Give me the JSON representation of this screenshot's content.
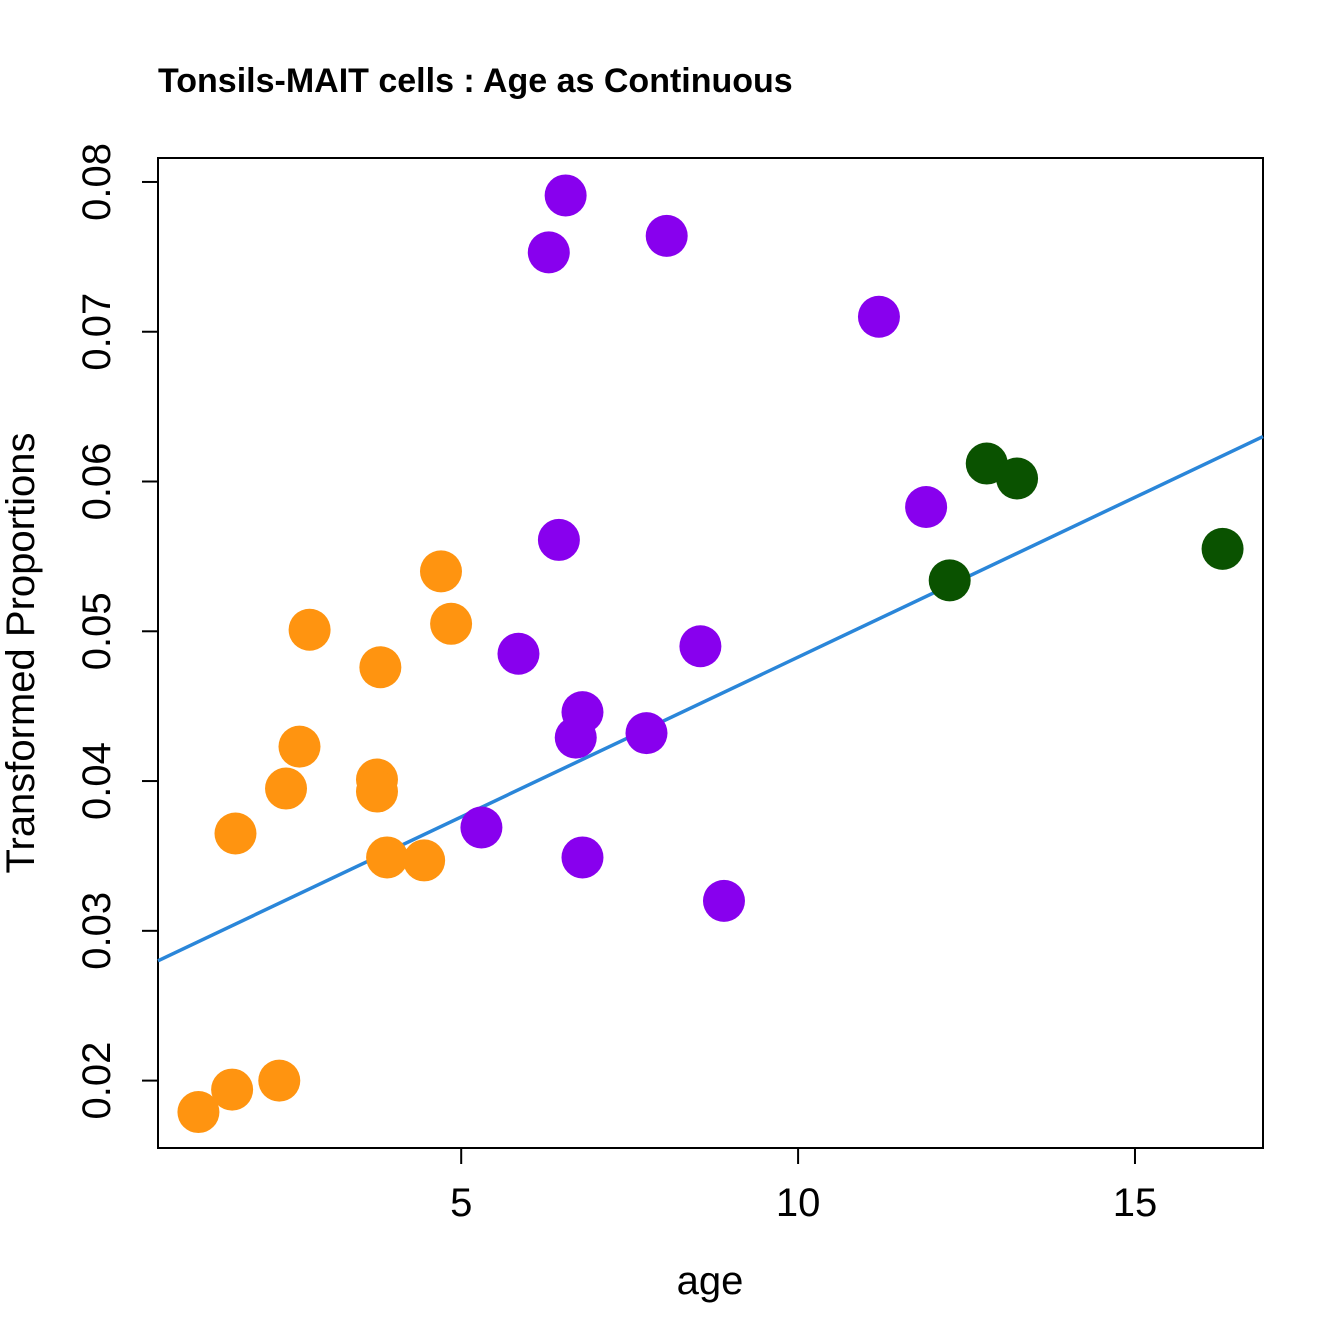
{
  "chart_data": {
    "type": "scatter",
    "title": "Tonsils-MAIT cells : Age as Continuous",
    "xlabel": "age",
    "ylabel": "Transformed Proportions",
    "xlim": [
      0.5,
      16.9
    ],
    "ylim": [
      0.0155,
      0.0816
    ],
    "xticks": [
      5,
      10,
      15
    ],
    "xtick_labels": [
      "5",
      "10",
      "15"
    ],
    "yticks": [
      0.02,
      0.03,
      0.04,
      0.05,
      0.06,
      0.07,
      0.08
    ],
    "ytick_labels": [
      "0.02",
      "0.03",
      "0.04",
      "0.05",
      "0.06",
      "0.07",
      "0.08"
    ],
    "grid": false,
    "series": [
      {
        "name": "orange",
        "color": "#FF9410",
        "points": [
          [
            1.1,
            0.0179
          ],
          [
            1.6,
            0.0194
          ],
          [
            2.3,
            0.02
          ],
          [
            1.65,
            0.0365
          ],
          [
            2.4,
            0.0395
          ],
          [
            2.6,
            0.0423
          ],
          [
            2.75,
            0.0501
          ],
          [
            3.8,
            0.0476
          ],
          [
            3.75,
            0.0401
          ],
          [
            3.75,
            0.0393
          ],
          [
            3.9,
            0.0349
          ],
          [
            4.45,
            0.0347
          ],
          [
            4.7,
            0.054
          ],
          [
            4.85,
            0.0505
          ]
        ]
      },
      {
        "name": "purple",
        "color": "#8800EE",
        "points": [
          [
            5.3,
            0.0369
          ],
          [
            5.85,
            0.0485
          ],
          [
            6.3,
            0.0753
          ],
          [
            6.55,
            0.0791
          ],
          [
            6.45,
            0.0561
          ],
          [
            6.7,
            0.0429
          ],
          [
            6.8,
            0.0446
          ],
          [
            6.8,
            0.0349
          ],
          [
            7.75,
            0.0432
          ],
          [
            8.05,
            0.0764
          ],
          [
            8.55,
            0.049
          ],
          [
            8.9,
            0.032
          ],
          [
            11.2,
            0.071
          ],
          [
            11.9,
            0.0583
          ]
        ]
      },
      {
        "name": "green",
        "color": "#0A5200",
        "points": [
          [
            12.25,
            0.0534
          ],
          [
            12.8,
            0.0612
          ],
          [
            13.25,
            0.0602
          ],
          [
            16.3,
            0.0555
          ]
        ]
      }
    ],
    "fit_line": {
      "color": "#2A86D9",
      "x": [
        0.5,
        16.9
      ],
      "y": [
        0.028,
        0.063
      ]
    }
  }
}
